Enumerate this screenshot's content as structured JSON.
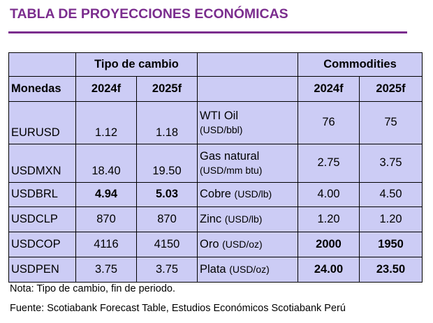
{
  "title": "TABLA DE PROYECCIONES ECONÓMICAS",
  "header": {
    "group_fx": "Tipo de cambio",
    "group_commodities": "Commodities",
    "col_monedas": "Monedas",
    "col_fx_2024": "2024f",
    "col_fx_2025": "2025f",
    "col_cm_2024": "2024f",
    "col_cm_2025": "2025f"
  },
  "rows": [
    {
      "currency": "EURUSD",
      "fx_2024": "1.12",
      "fx_2025": "1.18",
      "commodity": "WTI Oil",
      "unit": "(USD/bbl)",
      "cm_2024": "76",
      "cm_2025": "75"
    },
    {
      "currency": "USDMXN",
      "fx_2024": "18.40",
      "fx_2025": "19.50",
      "commodity": "Gas natural",
      "unit": "(USD/mm btu)",
      "cm_2024": "2.75",
      "cm_2025": "3.75"
    },
    {
      "currency": "USDBRL",
      "fx_2024": "4.94",
      "fx_2025": "5.03",
      "commodity": "Cobre",
      "unit": "(USD/lb)",
      "cm_2024": "4.00",
      "cm_2025": "4.50"
    },
    {
      "currency": "USDCLP",
      "fx_2024": "870",
      "fx_2025": "870",
      "commodity": "Zinc",
      "unit": "(USD/lb)",
      "cm_2024": "1.20",
      "cm_2025": "1.20"
    },
    {
      "currency": "USDCOP",
      "fx_2024": "4116",
      "fx_2025": "4150",
      "commodity": "Oro",
      "unit": "(USD/oz)",
      "cm_2024": "2000",
      "cm_2025": "1950"
    },
    {
      "currency": "USDPEN",
      "fx_2024": "3.75",
      "fx_2025": "3.75",
      "commodity": "Plata",
      "unit": "(USD/oz)",
      "cm_2024": "24.00",
      "cm_2025": "23.50"
    }
  ],
  "highlight_color": "#e0303a",
  "accent_color": "#7b2d8e",
  "notes": {
    "nota": "Nota: Tipo de cambio, fin de periodo.",
    "fuente": "Fuente: Scotiabank Forecast Table, Estudios Económicos Scotiabank Perú"
  }
}
